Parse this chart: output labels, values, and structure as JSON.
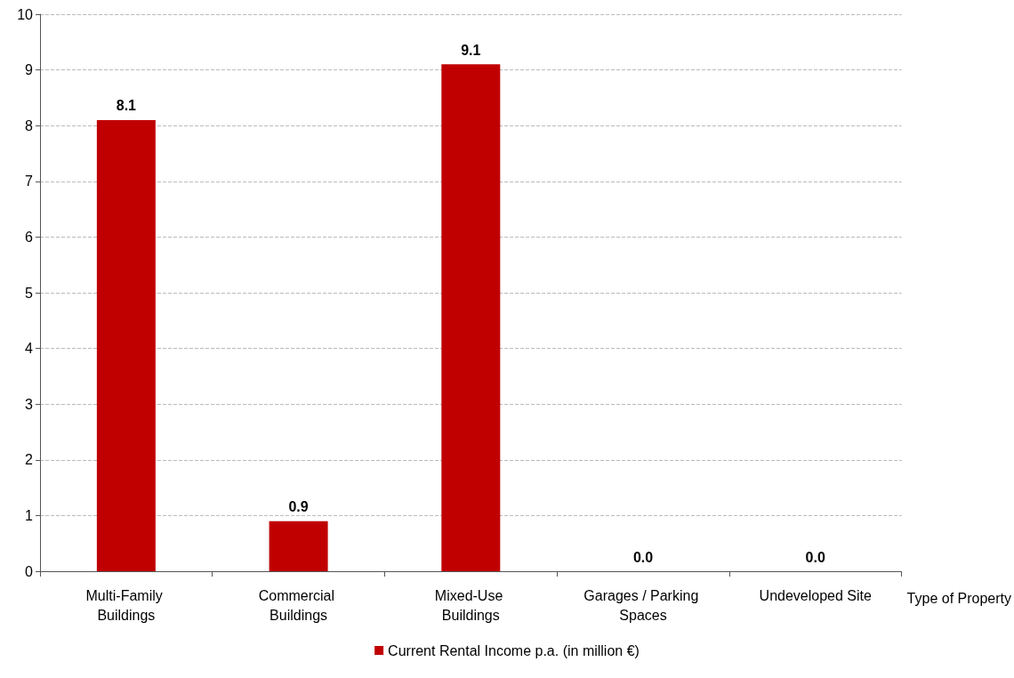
{
  "chart_data": {
    "type": "bar",
    "xlabel": "Type of Property",
    "categories": [
      "Multi-Family Buildings",
      "Commercial Buildings",
      "Mixed-Use Buildings",
      "Garages / Parking Spaces",
      "Undeveloped Site"
    ],
    "series": [
      {
        "name": "Current Rental Income p.a. (in million €)",
        "color": "#c00000",
        "values": [
          8.1,
          0.9,
          9.1,
          0,
          0
        ],
        "value_labels": [
          "8.1",
          "0.9",
          "9.1",
          "0.0",
          "0.0"
        ]
      }
    ],
    "ylim": [
      0,
      10
    ],
    "yticks": [
      0,
      1,
      2,
      3,
      4,
      5,
      6,
      7,
      8,
      9,
      10
    ],
    "grid": "y",
    "legend": "bottom"
  }
}
